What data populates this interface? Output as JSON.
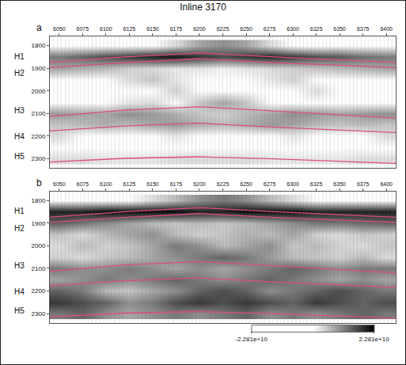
{
  "chart_data": {
    "type": "heatmap",
    "title": "Inline 3170",
    "x": [
      6050,
      6075,
      6100,
      6125,
      6150,
      6175,
      6200,
      6225,
      6250,
      6275,
      6300,
      6325,
      6350,
      6375,
      6400
    ],
    "y": [
      1800,
      1850,
      1900,
      1950,
      2000,
      2050,
      2100,
      2150,
      2200,
      2250,
      2300
    ],
    "xlim": [
      6040,
      6410
    ],
    "xticks": [
      6050,
      6075,
      6100,
      6125,
      6150,
      6175,
      6200,
      6225,
      6250,
      6275,
      6300,
      6325,
      6350,
      6375,
      6400
    ],
    "ylim": [
      2340,
      1760
    ],
    "yticks": [
      1800,
      1900,
      2000,
      2100,
      2200,
      2300
    ],
    "panels": [
      {
        "label": "a",
        "z": [
          [
            0,
            0,
            0,
            0,
            0,
            3000000000.0,
            8000000000.0,
            10000000000.0,
            8000000000.0,
            3000000000.0,
            0,
            0,
            0,
            0,
            0
          ],
          [
            12000000000.0,
            14000000000.0,
            16000000000.0,
            18000000000.0,
            20000000000.0,
            21000000000.0,
            18000000000.0,
            16000000000.0,
            18000000000.0,
            20000000000.0,
            18000000000.0,
            16000000000.0,
            15000000000.0,
            13000000000.0,
            12000000000.0
          ],
          [
            8000000000.0,
            7000000000.0,
            6000000000.0,
            4000000000.0,
            3000000000.0,
            2000000000.0,
            2000000000.0,
            1000000000.0,
            2000000000.0,
            3000000000.0,
            4000000000.0,
            5000000000.0,
            6000000000.0,
            7000000000.0,
            8000000000.0
          ],
          [
            0,
            0,
            0,
            3000000000.0,
            5000000000.0,
            2000000000.0,
            0,
            0,
            0,
            2000000000.0,
            4000000000.0,
            0,
            0,
            0,
            0
          ],
          [
            0,
            0,
            0,
            0,
            0,
            4000000000.0,
            0,
            0,
            0,
            0,
            0,
            3000000000.0,
            0,
            0,
            0
          ],
          [
            0,
            0,
            0,
            2000000000.0,
            3000000000.0,
            0,
            5000000000.0,
            8000000000.0,
            5000000000.0,
            0,
            0,
            0,
            0,
            0,
            0
          ],
          [
            9000000000.0,
            8000000000.0,
            8000000000.0,
            10000000000.0,
            9000000000.0,
            7000000000.0,
            5000000000.0,
            4000000000.0,
            6000000000.0,
            8000000000.0,
            10000000000.0,
            9000000000.0,
            8000000000.0,
            9000000000.0,
            10000000000.0
          ],
          [
            5000000000.0,
            6000000000.0,
            7000000000.0,
            6000000000.0,
            8000000000.0,
            9000000000.0,
            7000000000.0,
            6000000000.0,
            7000000000.0,
            9000000000.0,
            8000000000.0,
            6000000000.0,
            5000000000.0,
            6000000000.0,
            5000000000.0
          ],
          [
            3000000000.0,
            0,
            0,
            0,
            0,
            2000000000.0,
            0,
            0,
            0,
            0,
            2000000000.0,
            0,
            0,
            0,
            3000000000.0
          ],
          [
            0,
            0,
            0,
            0,
            0,
            0,
            0,
            0,
            0,
            0,
            0,
            0,
            0,
            0,
            0
          ],
          [
            3000000000.0,
            3000000000.0,
            2000000000.0,
            2000000000.0,
            2000000000.0,
            3000000000.0,
            3000000000.0,
            3000000000.0,
            3000000000.0,
            2000000000.0,
            2000000000.0,
            2000000000.0,
            2000000000.0,
            3000000000.0,
            3000000000.0
          ]
        ]
      },
      {
        "label": "b",
        "z": [
          [
            0,
            0,
            0,
            0,
            3000000000.0,
            6000000000.0,
            10000000000.0,
            12000000000.0,
            10000000000.0,
            6000000000.0,
            3000000000.0,
            0,
            0,
            0,
            0
          ],
          [
            20000000000.0,
            20000000000.0,
            22000000000.0,
            22000000000.0,
            22000000000.0,
            22000000000.0,
            20000000000.0,
            20000000000.0,
            22000000000.0,
            22000000000.0,
            22000000000.0,
            20000000000.0,
            20000000000.0,
            20000000000.0,
            20000000000.0
          ],
          [
            14000000000.0,
            12000000000.0,
            10000000000.0,
            8000000000.0,
            6000000000.0,
            5000000000.0,
            6000000000.0,
            5000000000.0,
            6000000000.0,
            8000000000.0,
            10000000000.0,
            12000000000.0,
            12000000000.0,
            13000000000.0,
            14000000000.0
          ],
          [
            5000000000.0,
            3000000000.0,
            6000000000.0,
            8000000000.0,
            10000000000.0,
            6000000000.0,
            4000000000.0,
            5000000000.0,
            7000000000.0,
            6000000000.0,
            8000000000.0,
            4000000000.0,
            3000000000.0,
            5000000000.0,
            4000000000.0
          ],
          [
            3000000000.0,
            6000000000.0,
            4000000000.0,
            5000000000.0,
            8000000000.0,
            12000000000.0,
            10000000000.0,
            6000000000.0,
            8000000000.0,
            10000000000.0,
            5000000000.0,
            6000000000.0,
            4000000000.0,
            3000000000.0,
            5000000000.0
          ],
          [
            4000000000.0,
            3000000000.0,
            5000000000.0,
            6000000000.0,
            8000000000.0,
            10000000000.0,
            12000000000.0,
            14000000000.0,
            12000000000.0,
            9000000000.0,
            6000000000.0,
            5000000000.0,
            4000000000.0,
            6000000000.0,
            3000000000.0
          ],
          [
            12000000000.0,
            10000000000.0,
            10000000000.0,
            12000000000.0,
            10000000000.0,
            8000000000.0,
            10000000000.0,
            8000000000.0,
            10000000000.0,
            12000000000.0,
            14000000000.0,
            12000000000.0,
            10000000000.0,
            12000000000.0,
            12000000000.0
          ],
          [
            8000000000.0,
            10000000000.0,
            12000000000.0,
            10000000000.0,
            12000000000.0,
            14000000000.0,
            12000000000.0,
            10000000000.0,
            12000000000.0,
            14000000000.0,
            12000000000.0,
            10000000000.0,
            8000000000.0,
            10000000000.0,
            8000000000.0
          ],
          [
            14000000000.0,
            12000000000.0,
            6000000000.0,
            5000000000.0,
            8000000000.0,
            10000000000.0,
            14000000000.0,
            16000000000.0,
            14000000000.0,
            10000000000.0,
            12000000000.0,
            14000000000.0,
            16000000000.0,
            14000000000.0,
            12000000000.0
          ],
          [
            18000000000.0,
            16000000000.0,
            14000000000.0,
            10000000000.0,
            12000000000.0,
            16000000000.0,
            18000000000.0,
            16000000000.0,
            18000000000.0,
            16000000000.0,
            14000000000.0,
            18000000000.0,
            16000000000.0,
            14000000000.0,
            16000000000.0
          ],
          [
            12000000000.0,
            14000000000.0,
            10000000000.0,
            8000000000.0,
            10000000000.0,
            12000000000.0,
            10000000000.0,
            12000000000.0,
            14000000000.0,
            10000000000.0,
            12000000000.0,
            10000000000.0,
            12000000000.0,
            14000000000.0,
            12000000000.0
          ]
        ]
      }
    ],
    "horizons": {
      "x": [
        6040,
        6120,
        6200,
        6280,
        6410
      ],
      "color": "#e04a86",
      "series": [
        {
          "name": "H1",
          "values": [
            1874,
            1850,
            1832,
            1850,
            1874
          ]
        },
        {
          "name": "H2",
          "values": [
            1897,
            1875,
            1858,
            1875,
            1897
          ]
        },
        {
          "name": "H3",
          "values": [
            2113,
            2085,
            2070,
            2090,
            2120
          ]
        },
        {
          "name": "H4",
          "values": [
            2177,
            2155,
            2142,
            2160,
            2184
          ]
        },
        {
          "name": "H5",
          "values": [
            2314,
            2298,
            2291,
            2300,
            2320
          ]
        }
      ]
    },
    "colorbar": {
      "range": [
        -22810000000.0,
        22810000000.0
      ],
      "ticks": [
        {
          "value": -22810000000.0,
          "label": "-2.281e+10"
        },
        {
          "value": 22810000000.0,
          "label": "2.281e+10"
        }
      ]
    }
  }
}
